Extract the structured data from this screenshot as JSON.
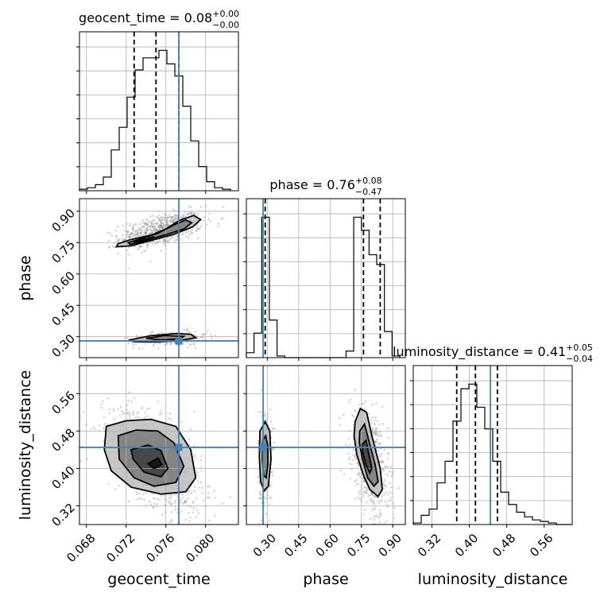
{
  "chart_data": {
    "type": "corner",
    "parameters": [
      "geocent_time",
      "phase",
      "luminosity_distance"
    ],
    "titles": [
      {
        "parameter": "geocent_time",
        "prefix": "geocent_time = ",
        "median": "0.08",
        "upper": "+0.00",
        "lower": "−0.00"
      },
      {
        "parameter": "phase",
        "prefix": "phase = ",
        "median": "0.76",
        "upper": "+0.08",
        "lower": "−0.47"
      },
      {
        "parameter": "luminosity_distance",
        "prefix": "luminosity_distance = ",
        "median": "0.41",
        "upper": "+0.05",
        "lower": "−0.04"
      }
    ],
    "truth_color": "#4682b4",
    "truths": {
      "geocent_time": 0.0773,
      "phase": 0.28,
      "luminosity_distance": 0.445
    },
    "ranges": {
      "geocent_time": [
        0.0673,
        0.0833
      ],
      "phase": [
        0.2,
        0.96
      ],
      "luminosity_distance": [
        0.28,
        0.62
      ]
    },
    "ticks": {
      "geocent_time": {
        "values": [
          0.068,
          0.072,
          0.076,
          0.08
        ],
        "labels": [
          "0.068",
          "0.072",
          "0.076",
          "0.080"
        ]
      },
      "phase": {
        "values": [
          0.3,
          0.45,
          0.6,
          0.75,
          0.9
        ],
        "labels": [
          "0.30",
          "0.45",
          "0.60",
          "0.75",
          "0.90"
        ]
      },
      "luminosity_distance": {
        "values": [
          0.32,
          0.4,
          0.48,
          0.56
        ],
        "labels": [
          "0.32",
          "0.40",
          "0.48",
          "0.56"
        ]
      }
    },
    "quantiles": {
      "geocent_time": [
        0.0728,
        0.075,
        0.0773
      ],
      "phase": [
        0.29,
        0.76,
        0.84
      ],
      "luminosity_distance": [
        0.373,
        0.413,
        0.46
      ]
    },
    "histograms": {
      "geocent_time": {
        "edges": [
          0.0673,
          0.0681,
          0.0689,
          0.0697,
          0.0705,
          0.0713,
          0.0721,
          0.0729,
          0.0737,
          0.0745,
          0.0753,
          0.0761,
          0.0769,
          0.0777,
          0.0785,
          0.0793,
          0.0801,
          0.0809,
          0.0817,
          0.0825
        ],
        "counts": [
          0.01,
          0.02,
          0.04,
          0.09,
          0.27,
          0.42,
          0.62,
          0.8,
          0.88,
          0.88,
          0.93,
          0.84,
          0.76,
          0.56,
          0.33,
          0.16,
          0.06,
          0.02,
          0.01
        ]
      },
      "phase": {
        "edges": [
          0.2,
          0.2367,
          0.2733,
          0.31,
          0.3467,
          0.3833,
          0.42,
          0.4567,
          0.4933,
          0.53,
          0.5667,
          0.6033,
          0.64,
          0.6767,
          0.7133,
          0.75,
          0.7867,
          0.8233,
          0.86,
          0.8967,
          0.9333
        ],
        "counts": [
          0.03,
          0.15,
          0.86,
          0.23,
          0.01,
          0.0,
          0.0,
          0.0,
          0.0,
          0.0,
          0.0,
          0.0,
          0.0,
          0.04,
          0.86,
          0.78,
          0.63,
          0.57,
          0.16,
          0.01
        ]
      },
      "luminosity_distance": {
        "edges": [
          0.28,
          0.297,
          0.314,
          0.331,
          0.348,
          0.365,
          0.382,
          0.399,
          0.416,
          0.433,
          0.45,
          0.467,
          0.484,
          0.501,
          0.518,
          0.535,
          0.552,
          0.569,
          0.586,
          0.603,
          0.62
        ],
        "counts": [
          0.01,
          0.06,
          0.1,
          0.27,
          0.41,
          0.67,
          0.88,
          0.91,
          0.76,
          0.62,
          0.41,
          0.21,
          0.13,
          0.08,
          0.05,
          0.03,
          0.02,
          0.01,
          0.0,
          0.0
        ]
      }
    },
    "density_2d": [
      {
        "x": "geocent_time",
        "y": "phase",
        "clusters": [
          {
            "cx": 0.0755,
            "cy": 0.81,
            "sx": 0.0016,
            "sy": 0.032,
            "rho": 0.5,
            "n": 650
          },
          {
            "cx": 0.0765,
            "cy": 0.29,
            "sx": 0.0014,
            "sy": 0.014,
            "rho": 0.3,
            "n": 240
          }
        ],
        "contours": [
          [
            [
              0.0712,
              0.745
            ],
            [
              0.0725,
              0.765
            ],
            [
              0.0745,
              0.785
            ],
            [
              0.076,
              0.815
            ],
            [
              0.0773,
              0.855
            ],
            [
              0.0788,
              0.88
            ],
            [
              0.0795,
              0.86
            ],
            [
              0.0787,
              0.825
            ],
            [
              0.0768,
              0.79
            ],
            [
              0.0745,
              0.76
            ],
            [
              0.0725,
              0.735
            ],
            [
              0.071,
              0.73
            ]
          ],
          [
            [
              0.0722,
              0.75
            ],
            [
              0.0735,
              0.768
            ],
            [
              0.0752,
              0.795
            ],
            [
              0.0768,
              0.835
            ],
            [
              0.078,
              0.858
            ],
            [
              0.0786,
              0.845
            ],
            [
              0.0778,
              0.815
            ],
            [
              0.0758,
              0.785
            ],
            [
              0.0738,
              0.758
            ],
            [
              0.0724,
              0.742
            ]
          ],
          [
            [
              0.0728,
              0.752
            ],
            [
              0.0742,
              0.77
            ],
            [
              0.0748,
              0.778
            ],
            [
              0.0742,
              0.764
            ],
            [
              0.0732,
              0.748
            ]
          ],
          [
            [
              0.0724,
              0.285
            ],
            [
              0.0745,
              0.305
            ],
            [
              0.077,
              0.315
            ],
            [
              0.0785,
              0.312
            ],
            [
              0.079,
              0.295
            ],
            [
              0.0772,
              0.28
            ],
            [
              0.0745,
              0.275
            ],
            [
              0.0728,
              0.276
            ]
          ],
          [
            [
              0.074,
              0.292
            ],
            [
              0.0758,
              0.305
            ],
            [
              0.0778,
              0.302
            ],
            [
              0.0774,
              0.289
            ],
            [
              0.0755,
              0.284
            ]
          ]
        ]
      },
      {
        "x": "geocent_time",
        "y": "luminosity_distance",
        "clusters": [
          {
            "cx": 0.075,
            "cy": 0.415,
            "sx": 0.0018,
            "sy": 0.042,
            "rho": -0.55,
            "n": 900
          }
        ],
        "contours": [
          [
            [
              0.07,
              0.49
            ],
            [
              0.072,
              0.502
            ],
            [
              0.0745,
              0.505
            ],
            [
              0.077,
              0.49
            ],
            [
              0.0785,
              0.44
            ],
            [
              0.079,
              0.38
            ],
            [
              0.078,
              0.35
            ],
            [
              0.0755,
              0.345
            ],
            [
              0.0725,
              0.36
            ],
            [
              0.0705,
              0.395
            ],
            [
              0.0698,
              0.44
            ]
          ],
          [
            [
              0.0712,
              0.47
            ],
            [
              0.073,
              0.482
            ],
            [
              0.0752,
              0.48
            ],
            [
              0.0768,
              0.455
            ],
            [
              0.0778,
              0.405
            ],
            [
              0.077,
              0.37
            ],
            [
              0.0748,
              0.362
            ],
            [
              0.0728,
              0.38
            ],
            [
              0.0713,
              0.42
            ]
          ],
          [
            [
              0.0725,
              0.44
            ],
            [
              0.0742,
              0.45
            ],
            [
              0.0755,
              0.438
            ],
            [
              0.0762,
              0.4
            ],
            [
              0.0755,
              0.382
            ],
            [
              0.0738,
              0.392
            ],
            [
              0.0727,
              0.42
            ]
          ],
          [
            [
              0.0742,
              0.41
            ],
            [
              0.0752,
              0.422
            ],
            [
              0.0756,
              0.408
            ],
            [
              0.0748,
              0.4
            ]
          ]
        ]
      },
      {
        "x": "phase",
        "y": "luminosity_distance",
        "clusters": [
          {
            "cx": 0.29,
            "cy": 0.425,
            "sx": 0.012,
            "sy": 0.04,
            "rho": 0.0,
            "n": 300
          },
          {
            "cx": 0.79,
            "cy": 0.415,
            "sx": 0.035,
            "sy": 0.042,
            "rho": -0.4,
            "n": 650
          }
        ],
        "contours": [
          [
            [
              0.265,
              0.48
            ],
            [
              0.29,
              0.5
            ],
            [
              0.312,
              0.48
            ],
            [
              0.318,
              0.42
            ],
            [
              0.305,
              0.362
            ],
            [
              0.285,
              0.352
            ],
            [
              0.268,
              0.372
            ],
            [
              0.262,
              0.425
            ]
          ],
          [
            [
              0.278,
              0.46
            ],
            [
              0.292,
              0.47
            ],
            [
              0.302,
              0.45
            ],
            [
              0.303,
              0.41
            ],
            [
              0.295,
              0.38
            ],
            [
              0.282,
              0.385
            ],
            [
              0.276,
              0.42
            ]
          ],
          [
            [
              0.72,
              0.5
            ],
            [
              0.745,
              0.528
            ],
            [
              0.775,
              0.52
            ],
            [
              0.8,
              0.47
            ],
            [
              0.84,
              0.4
            ],
            [
              0.85,
              0.355
            ],
            [
              0.83,
              0.34
            ],
            [
              0.79,
              0.355
            ],
            [
              0.76,
              0.385
            ],
            [
              0.728,
              0.43
            ],
            [
              0.715,
              0.47
            ]
          ],
          [
            [
              0.742,
              0.48
            ],
            [
              0.765,
              0.495
            ],
            [
              0.785,
              0.46
            ],
            [
              0.815,
              0.41
            ],
            [
              0.83,
              0.372
            ],
            [
              0.81,
              0.362
            ],
            [
              0.78,
              0.38
            ],
            [
              0.755,
              0.42
            ],
            [
              0.74,
              0.455
            ]
          ],
          [
            [
              0.755,
              0.452
            ],
            [
              0.772,
              0.46
            ],
            [
              0.785,
              0.432
            ],
            [
              0.8,
              0.4
            ],
            [
              0.79,
              0.39
            ],
            [
              0.77,
              0.41
            ],
            [
              0.756,
              0.435
            ]
          ]
        ]
      }
    ],
    "xlabels": [
      "geocent_time",
      "phase",
      "luminosity_distance"
    ],
    "ylabels": [
      "phase",
      "luminosity_distance"
    ]
  }
}
